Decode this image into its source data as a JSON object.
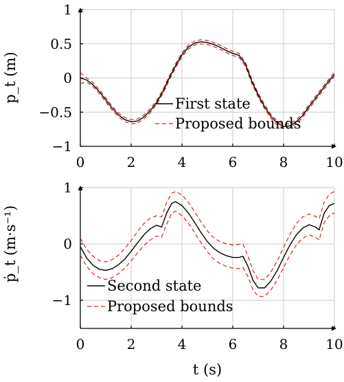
{
  "chart_data": [
    {
      "type": "line",
      "ylabel": "p_t (m)",
      "xlim": [
        0,
        10
      ],
      "ylim": [
        -1,
        1
      ],
      "xticks": [
        "0",
        "2",
        "4",
        "6",
        "8",
        "10"
      ],
      "yticks": [
        "1",
        "0.5",
        "0",
        "−0.5",
        "−1"
      ],
      "grid": true,
      "legend_position": "bottom-right",
      "series": [
        {
          "name": "First state",
          "style": "solid",
          "color": "#000000",
          "x": [
            0,
            0.25,
            0.5,
            0.75,
            1,
            1.25,
            1.5,
            1.75,
            2,
            2.25,
            2.5,
            2.75,
            3,
            3.25,
            3.5,
            3.75,
            4,
            4.25,
            4.5,
            4.75,
            5,
            5.25,
            5.5,
            5.75,
            6,
            6.25,
            6.5,
            6.75,
            7,
            7.25,
            7.5,
            7.75,
            8,
            8.25,
            8.5,
            8.75,
            9,
            9.25,
            9.5,
            9.75,
            10
          ],
          "y": [
            0.0,
            -0.03,
            -0.1,
            -0.2,
            -0.32,
            -0.44,
            -0.54,
            -0.61,
            -0.64,
            -0.63,
            -0.57,
            -0.48,
            -0.36,
            -0.2,
            0.0,
            0.18,
            0.34,
            0.45,
            0.51,
            0.53,
            0.52,
            0.49,
            0.45,
            0.4,
            0.36,
            0.33,
            0.2,
            -0.05,
            -0.25,
            -0.42,
            -0.56,
            -0.66,
            -0.71,
            -0.7,
            -0.64,
            -0.55,
            -0.42,
            -0.3,
            -0.18,
            -0.06,
            0.05
          ]
        },
        {
          "name": "Proposed bounds",
          "style": "dashed",
          "color": "#d62020",
          "x": [
            0,
            0.25,
            0.5,
            0.75,
            1,
            1.25,
            1.5,
            1.75,
            2,
            2.25,
            2.5,
            2.75,
            3,
            3.25,
            3.5,
            3.75,
            4,
            4.25,
            4.5,
            4.75,
            5,
            5.25,
            5.5,
            5.75,
            6,
            6.25,
            6.5,
            6.75,
            7,
            7.25,
            7.5,
            7.75,
            8,
            8.25,
            8.5,
            8.75,
            9,
            9.25,
            9.5,
            9.75,
            10
          ],
          "y": [
            0.08,
            0.0,
            -0.07,
            -0.17,
            -0.29,
            -0.41,
            -0.51,
            -0.58,
            -0.61,
            -0.6,
            -0.54,
            -0.45,
            -0.33,
            -0.17,
            0.03,
            0.21,
            0.37,
            0.48,
            0.54,
            0.56,
            0.55,
            0.52,
            0.48,
            0.43,
            0.39,
            0.36,
            0.23,
            -0.02,
            -0.22,
            -0.39,
            -0.53,
            -0.63,
            -0.68,
            -0.67,
            -0.61,
            -0.52,
            -0.39,
            -0.27,
            -0.15,
            -0.03,
            0.08
          ]
        },
        {
          "name": "",
          "style": "dashed",
          "color": "#d62020",
          "x": [
            0,
            0.25,
            0.5,
            0.75,
            1,
            1.25,
            1.5,
            1.75,
            2,
            2.25,
            2.5,
            2.75,
            3,
            3.25,
            3.5,
            3.75,
            4,
            4.25,
            4.5,
            4.75,
            5,
            5.25,
            5.5,
            5.75,
            6,
            6.25,
            6.5,
            6.75,
            7,
            7.25,
            7.5,
            7.75,
            8,
            8.25,
            8.5,
            8.75,
            9,
            9.25,
            9.5,
            9.75,
            10
          ],
          "y": [
            -0.08,
            -0.06,
            -0.13,
            -0.23,
            -0.35,
            -0.47,
            -0.57,
            -0.64,
            -0.67,
            -0.66,
            -0.6,
            -0.51,
            -0.39,
            -0.23,
            -0.03,
            0.15,
            0.31,
            0.42,
            0.48,
            0.5,
            0.49,
            0.46,
            0.42,
            0.37,
            0.33,
            0.3,
            0.17,
            -0.08,
            -0.28,
            -0.45,
            -0.59,
            -0.69,
            -0.74,
            -0.73,
            -0.67,
            -0.58,
            -0.45,
            -0.33,
            -0.21,
            -0.09,
            0.02
          ]
        }
      ]
    },
    {
      "type": "line",
      "xlabel": "t (s)",
      "ylabel": "ṗ_t (m·s⁻¹)",
      "xlim": [
        0,
        10
      ],
      "ylim": [
        -1.5,
        1
      ],
      "xticks": [
        "0",
        "2",
        "4",
        "6",
        "8",
        "10"
      ],
      "yticks": [
        "1",
        "0",
        "−1"
      ],
      "grid": true,
      "legend_position": "bottom-left",
      "series": [
        {
          "name": "Second state",
          "style": "solid",
          "color": "#000000",
          "x": [
            0,
            0.25,
            0.5,
            0.75,
            1,
            1.25,
            1.5,
            1.75,
            2,
            2.25,
            2.5,
            2.75,
            3,
            3.2,
            3.4,
            3.6,
            3.75,
            4,
            4.25,
            4.5,
            4.75,
            5,
            5.25,
            5.5,
            5.75,
            6,
            6.25,
            6.4,
            6.6,
            6.8,
            7,
            7.25,
            7.5,
            7.75,
            8,
            8.25,
            8.5,
            8.75,
            9,
            9.25,
            9.4,
            9.6,
            9.8,
            10
          ],
          "y": [
            -0.05,
            -0.25,
            -0.38,
            -0.45,
            -0.47,
            -0.44,
            -0.37,
            -0.27,
            -0.13,
            0.02,
            0.16,
            0.27,
            0.33,
            0.3,
            0.55,
            0.72,
            0.75,
            0.68,
            0.55,
            0.38,
            0.2,
            0.04,
            -0.08,
            -0.16,
            -0.21,
            -0.24,
            -0.24,
            -0.22,
            -0.4,
            -0.65,
            -0.78,
            -0.78,
            -0.66,
            -0.47,
            -0.24,
            -0.02,
            0.16,
            0.28,
            0.34,
            0.3,
            0.25,
            0.55,
            0.68,
            0.72
          ]
        },
        {
          "name": "Proposed bounds",
          "style": "dashed",
          "color": "#d62020",
          "x": [
            0,
            0.25,
            0.5,
            0.75,
            1,
            1.25,
            1.5,
            1.75,
            2,
            2.25,
            2.5,
            2.75,
            3,
            3.2,
            3.4,
            3.6,
            3.75,
            4,
            4.25,
            4.5,
            4.75,
            5,
            5.25,
            5.5,
            5.75,
            6,
            6.25,
            6.4,
            6.6,
            6.8,
            7,
            7.25,
            7.5,
            7.75,
            8,
            8.25,
            8.5,
            8.75,
            9,
            9.25,
            9.4,
            9.6,
            9.8,
            10
          ],
          "y": [
            0.1,
            -0.1,
            -0.22,
            -0.3,
            -0.32,
            -0.28,
            -0.2,
            -0.08,
            0.06,
            0.22,
            0.36,
            0.46,
            0.5,
            0.48,
            0.74,
            0.9,
            0.93,
            0.87,
            0.74,
            0.57,
            0.39,
            0.23,
            0.11,
            0.04,
            0.0,
            -0.02,
            -0.01,
            0.0,
            -0.22,
            -0.48,
            -0.63,
            -0.63,
            -0.5,
            -0.3,
            -0.06,
            0.17,
            0.36,
            0.48,
            0.53,
            0.49,
            0.45,
            0.74,
            0.88,
            0.93
          ]
        },
        {
          "name": "",
          "style": "dashed",
          "color": "#d62020",
          "x": [
            0,
            0.25,
            0.5,
            0.75,
            1,
            1.25,
            1.5,
            1.75,
            2,
            2.25,
            2.5,
            2.75,
            3,
            3.2,
            3.4,
            3.6,
            3.75,
            4,
            4.25,
            4.5,
            4.75,
            5,
            5.25,
            5.5,
            5.75,
            6,
            6.25,
            6.4,
            6.6,
            6.8,
            7,
            7.25,
            7.5,
            7.75,
            8,
            8.25,
            8.5,
            8.75,
            9,
            9.25,
            9.4,
            9.6,
            9.8,
            10
          ],
          "y": [
            -0.2,
            -0.4,
            -0.53,
            -0.6,
            -0.63,
            -0.6,
            -0.53,
            -0.43,
            -0.3,
            -0.16,
            -0.03,
            0.07,
            0.14,
            0.12,
            0.35,
            0.55,
            0.58,
            0.5,
            0.37,
            0.2,
            0.02,
            -0.14,
            -0.27,
            -0.35,
            -0.4,
            -0.43,
            -0.44,
            -0.42,
            -0.58,
            -0.82,
            -0.93,
            -0.93,
            -0.82,
            -0.64,
            -0.42,
            -0.2,
            -0.02,
            0.1,
            0.16,
            0.12,
            0.07,
            0.38,
            0.5,
            0.55
          ]
        }
      ]
    }
  ]
}
